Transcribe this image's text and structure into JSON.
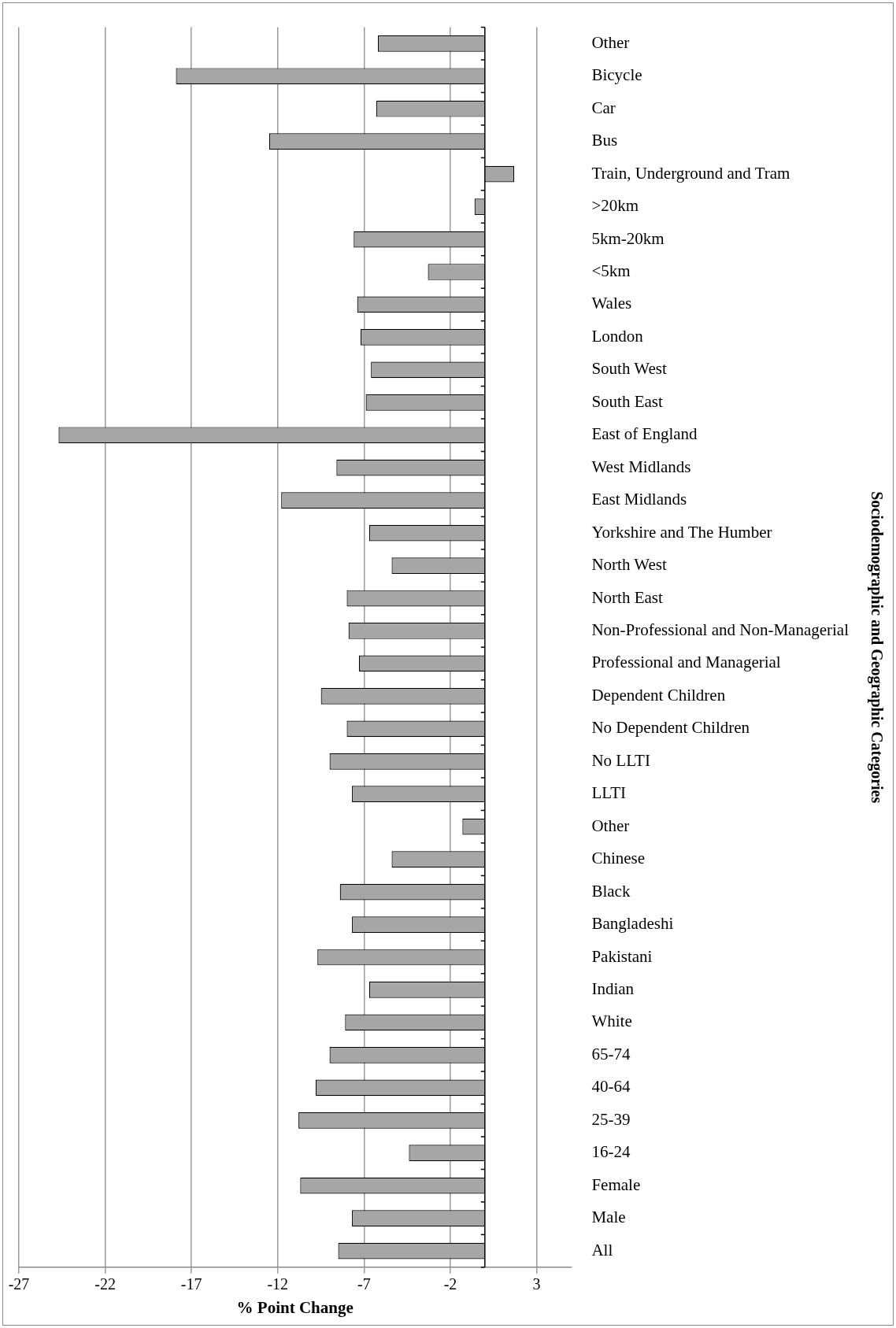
{
  "chart_data": {
    "type": "bar",
    "orientation": "horizontal",
    "xlabel": "% Point Change",
    "ylabel": "Sociodemographic and Geographic Categories",
    "categories": [
      "Other",
      "Bicycle",
      "Car",
      "Bus",
      "Train, Underground and Tram",
      ">20km",
      "5km-20km",
      "<5km",
      "Wales",
      "London",
      "South West",
      "South East",
      "East of England",
      "West Midlands",
      "East Midlands",
      "Yorkshire and The Humber",
      "North West",
      "North East",
      "Non-Professional and Non-Managerial",
      "Professional and Managerial",
      "Dependent Children",
      "No Dependent Children",
      "No LLTI",
      "LLTI",
      "Other",
      "Chinese",
      "Black",
      "Bangladeshi",
      "Pakistani",
      "Indian",
      "White",
      "65-74",
      "40-64",
      "25-39",
      "16-24",
      "Female",
      "Male",
      "All"
    ],
    "values": [
      -6.2,
      -17.9,
      -6.3,
      -12.5,
      1.7,
      -0.6,
      -7.6,
      -3.3,
      -7.4,
      -7.2,
      -6.6,
      -6.9,
      -24.7,
      -8.6,
      -11.8,
      -6.7,
      -5.4,
      -8.0,
      -7.9,
      -7.3,
      -9.5,
      -8.0,
      -9.0,
      -7.7,
      -1.3,
      -5.4,
      -8.4,
      -7.7,
      -9.7,
      -6.7,
      -8.1,
      -9.0,
      -9.8,
      -10.8,
      -4.4,
      -10.7,
      -7.7,
      -8.5
    ],
    "color": "#a6a6a6",
    "xlim": [
      -27,
      5
    ],
    "xticks": [
      -27,
      -22,
      -17,
      -12,
      -7,
      -2,
      3
    ],
    "grid": "x",
    "ref_lines": [
      {
        "axis": "x",
        "value": 0,
        "color": "#000000"
      }
    ]
  }
}
